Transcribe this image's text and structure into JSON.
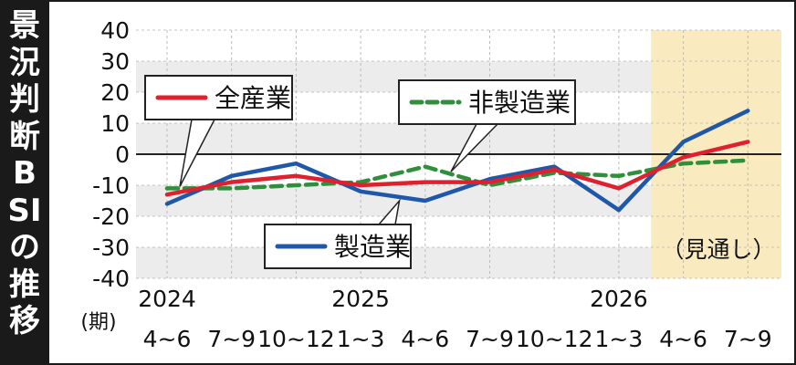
{
  "title": "景況判断BSIの推移",
  "colors": {
    "all_industries": "#e0202e",
    "manufacturing": "#1f58a8",
    "non_manufacturing": "#2f8f3a",
    "band": "#ececec",
    "forecast": "#faeac0",
    "zero_line": "#222222"
  },
  "chart_data": {
    "type": "line",
    "title": "景況判断BSIの推移",
    "x_unit": "(期)",
    "categories": [
      "4~6",
      "7~9",
      "10~12",
      "1~3",
      "4~6",
      "7~9",
      "10~12",
      "1~3",
      "4~6",
      "7~9"
    ],
    "years": [
      {
        "label": "2024",
        "index": 0
      },
      {
        "label": "2025",
        "index": 3
      },
      {
        "label": "2026",
        "index": 7
      }
    ],
    "ylim": [
      -40,
      40
    ],
    "yticks": [
      40,
      30,
      20,
      10,
      0,
      -10,
      -20,
      -30,
      -40
    ],
    "grid": true,
    "forecast_region": {
      "from_index": 7.5,
      "label": "（見通し）"
    },
    "series": [
      {
        "key": "manufacturing",
        "name": "製造業",
        "style": "solid",
        "values": [
          -16,
          -7,
          -3,
          -12,
          -15,
          -8,
          -4,
          -18,
          4,
          14
        ]
      },
      {
        "key": "all_industries",
        "name": "全産業",
        "style": "solid",
        "values": [
          -13,
          -9,
          -7,
          -10,
          -9,
          -9,
          -5,
          -11,
          -1,
          4
        ]
      },
      {
        "key": "non_manufacturing",
        "name": "非製造業",
        "style": "dashed",
        "values": [
          -11,
          -11,
          -10,
          -9,
          -4,
          -10,
          -6,
          -7,
          -3,
          -2
        ]
      }
    ],
    "legend": [
      {
        "series": "all_industries",
        "placement": "top-left"
      },
      {
        "series": "non_manufacturing",
        "placement": "top-center"
      },
      {
        "series": "manufacturing",
        "placement": "bottom-center"
      }
    ]
  }
}
